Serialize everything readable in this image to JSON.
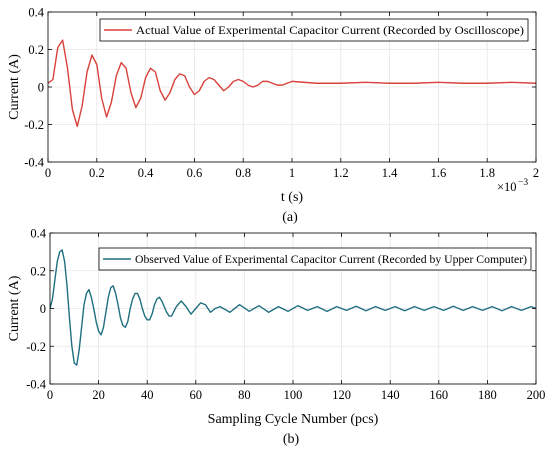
{
  "chart_data": [
    {
      "type": "line",
      "panel_label": "(a)",
      "xlabel": "t (s)",
      "x_exponent_base": "×10",
      "x_exponent_power": "−3",
      "ylabel": "Current (A)",
      "xlim": [
        0,
        0.002
      ],
      "ylim": [
        -0.4,
        0.4
      ],
      "xticks": [
        0,
        0.0002,
        0.0004,
        0.0006,
        0.0008,
        0.001,
        0.0012,
        0.0014,
        0.0016,
        0.0018,
        0.002
      ],
      "xtick_labels": [
        "0",
        "0.2",
        "0.4",
        "0.6",
        "0.8",
        "1",
        "1.2",
        "1.4",
        "1.6",
        "1.8",
        "2"
      ],
      "yticks": [
        -0.4,
        -0.2,
        0,
        0.2,
        0.4
      ],
      "ytick_labels": [
        "-0.4",
        "-0.2",
        "0",
        "0.2",
        "0.4"
      ],
      "grid": true,
      "legend_position": "top-right",
      "series": [
        {
          "name": "Actual Value of Experimental Capacitor Current (Recorded by Oscilloscope)",
          "color": "#d9413b",
          "x": [
            0,
            2e-05,
            4e-05,
            6e-05,
            8e-05,
            0.0001,
            0.00012,
            0.00014,
            0.00016,
            0.00018,
            0.0002,
            0.00022,
            0.00024,
            0.00026,
            0.00028,
            0.0003,
            0.00032,
            0.00034,
            0.00036,
            0.00038,
            0.0004,
            0.00042,
            0.00044,
            0.00046,
            0.00048,
            0.0005,
            0.00052,
            0.00054,
            0.00056,
            0.00058,
            0.0006,
            0.00062,
            0.00064,
            0.00066,
            0.00068,
            0.0007,
            0.00072,
            0.00074,
            0.00076,
            0.00078,
            0.0008,
            0.00082,
            0.00084,
            0.00086,
            0.00088,
            0.0009,
            0.00092,
            0.00094,
            0.00096,
            0.00098,
            0.001,
            0.0011,
            0.0012,
            0.0013,
            0.0014,
            0.0015,
            0.0016,
            0.0017,
            0.0018,
            0.0019,
            0.002
          ],
          "y": [
            0.02,
            0.04,
            0.21,
            0.25,
            0.1,
            -0.12,
            -0.21,
            -0.1,
            0.08,
            0.17,
            0.12,
            -0.06,
            -0.16,
            -0.08,
            0.06,
            0.13,
            0.1,
            -0.03,
            -0.11,
            -0.06,
            0.05,
            0.1,
            0.08,
            -0.02,
            -0.07,
            -0.03,
            0.04,
            0.07,
            0.06,
            0,
            -0.04,
            -0.02,
            0.03,
            0.05,
            0.04,
            0.01,
            -0.02,
            0,
            0.03,
            0.04,
            0.03,
            0.01,
            0,
            0.01,
            0.03,
            0.03,
            0.02,
            0.01,
            0.01,
            0.02,
            0.03,
            0.02,
            0.02,
            0.025,
            0.02,
            0.02,
            0.025,
            0.02,
            0.02,
            0.025,
            0.02
          ]
        }
      ]
    },
    {
      "type": "line",
      "panel_label": "(b)",
      "xlabel": "Sampling Cycle Number (pcs)",
      "ylabel": "Current (A)",
      "xlim": [
        0,
        200
      ],
      "ylim": [
        -0.4,
        0.4
      ],
      "xticks": [
        0,
        20,
        40,
        60,
        80,
        100,
        120,
        140,
        160,
        180,
        200
      ],
      "xtick_labels": [
        "0",
        "20",
        "40",
        "60",
        "80",
        "100",
        "120",
        "140",
        "160",
        "180",
        "200"
      ],
      "yticks": [
        -0.4,
        -0.2,
        0,
        0.2,
        0.4
      ],
      "ytick_labels": [
        "-0.4",
        "-0.2",
        "0",
        "0.2",
        "0.4"
      ],
      "grid": true,
      "legend_position": "top-right",
      "series": [
        {
          "name": "Observed Value of Experimental Capacitor Current (Recorded by Upper Computer)",
          "color": "#1f6f7f",
          "x": [
            0,
            1,
            2,
            3,
            4,
            5,
            6,
            7,
            8,
            9,
            10,
            11,
            12,
            13,
            14,
            15,
            16,
            17,
            18,
            19,
            20,
            21,
            22,
            23,
            24,
            25,
            26,
            27,
            28,
            29,
            30,
            31,
            32,
            33,
            34,
            35,
            36,
            37,
            38,
            39,
            40,
            41,
            42,
            43,
            44,
            45,
            46,
            47,
            48,
            49,
            50,
            52,
            54,
            56,
            58,
            60,
            62,
            64,
            66,
            68,
            70,
            74,
            78,
            82,
            86,
            90,
            94,
            98,
            102,
            106,
            110,
            114,
            118,
            122,
            126,
            130,
            134,
            138,
            142,
            146,
            150,
            154,
            158,
            162,
            166,
            170,
            174,
            178,
            182,
            186,
            190,
            194,
            198,
            200
          ],
          "y": [
            0,
            0.05,
            0.15,
            0.25,
            0.3,
            0.31,
            0.25,
            0.12,
            -0.05,
            -0.2,
            -0.29,
            -0.3,
            -0.22,
            -0.1,
            0.02,
            0.08,
            0.1,
            0.06,
            0,
            -0.07,
            -0.12,
            -0.14,
            -0.1,
            -0.02,
            0.06,
            0.11,
            0.12,
            0.08,
            0.02,
            -0.05,
            -0.09,
            -0.1,
            -0.07,
            0,
            0.05,
            0.08,
            0.08,
            0.05,
            0,
            -0.04,
            -0.06,
            -0.06,
            -0.03,
            0.02,
            0.05,
            0.06,
            0.04,
            0.01,
            -0.02,
            -0.04,
            -0.04,
            0.01,
            0.04,
            0.01,
            -0.03,
            0,
            0.03,
            0.02,
            -0.02,
            0,
            0.01,
            -0.02,
            0.02,
            -0.015,
            0.015,
            -0.02,
            0.01,
            -0.015,
            0.015,
            -0.01,
            0.01,
            -0.015,
            0.01,
            -0.01,
            0.012,
            -0.012,
            0.01,
            -0.01,
            0.01,
            -0.012,
            0.01,
            -0.01,
            0.01,
            -0.01,
            0.012,
            -0.01,
            0.01,
            -0.01,
            0.01,
            -0.012,
            0.01,
            -0.01,
            0.01,
            0
          ]
        }
      ]
    }
  ]
}
